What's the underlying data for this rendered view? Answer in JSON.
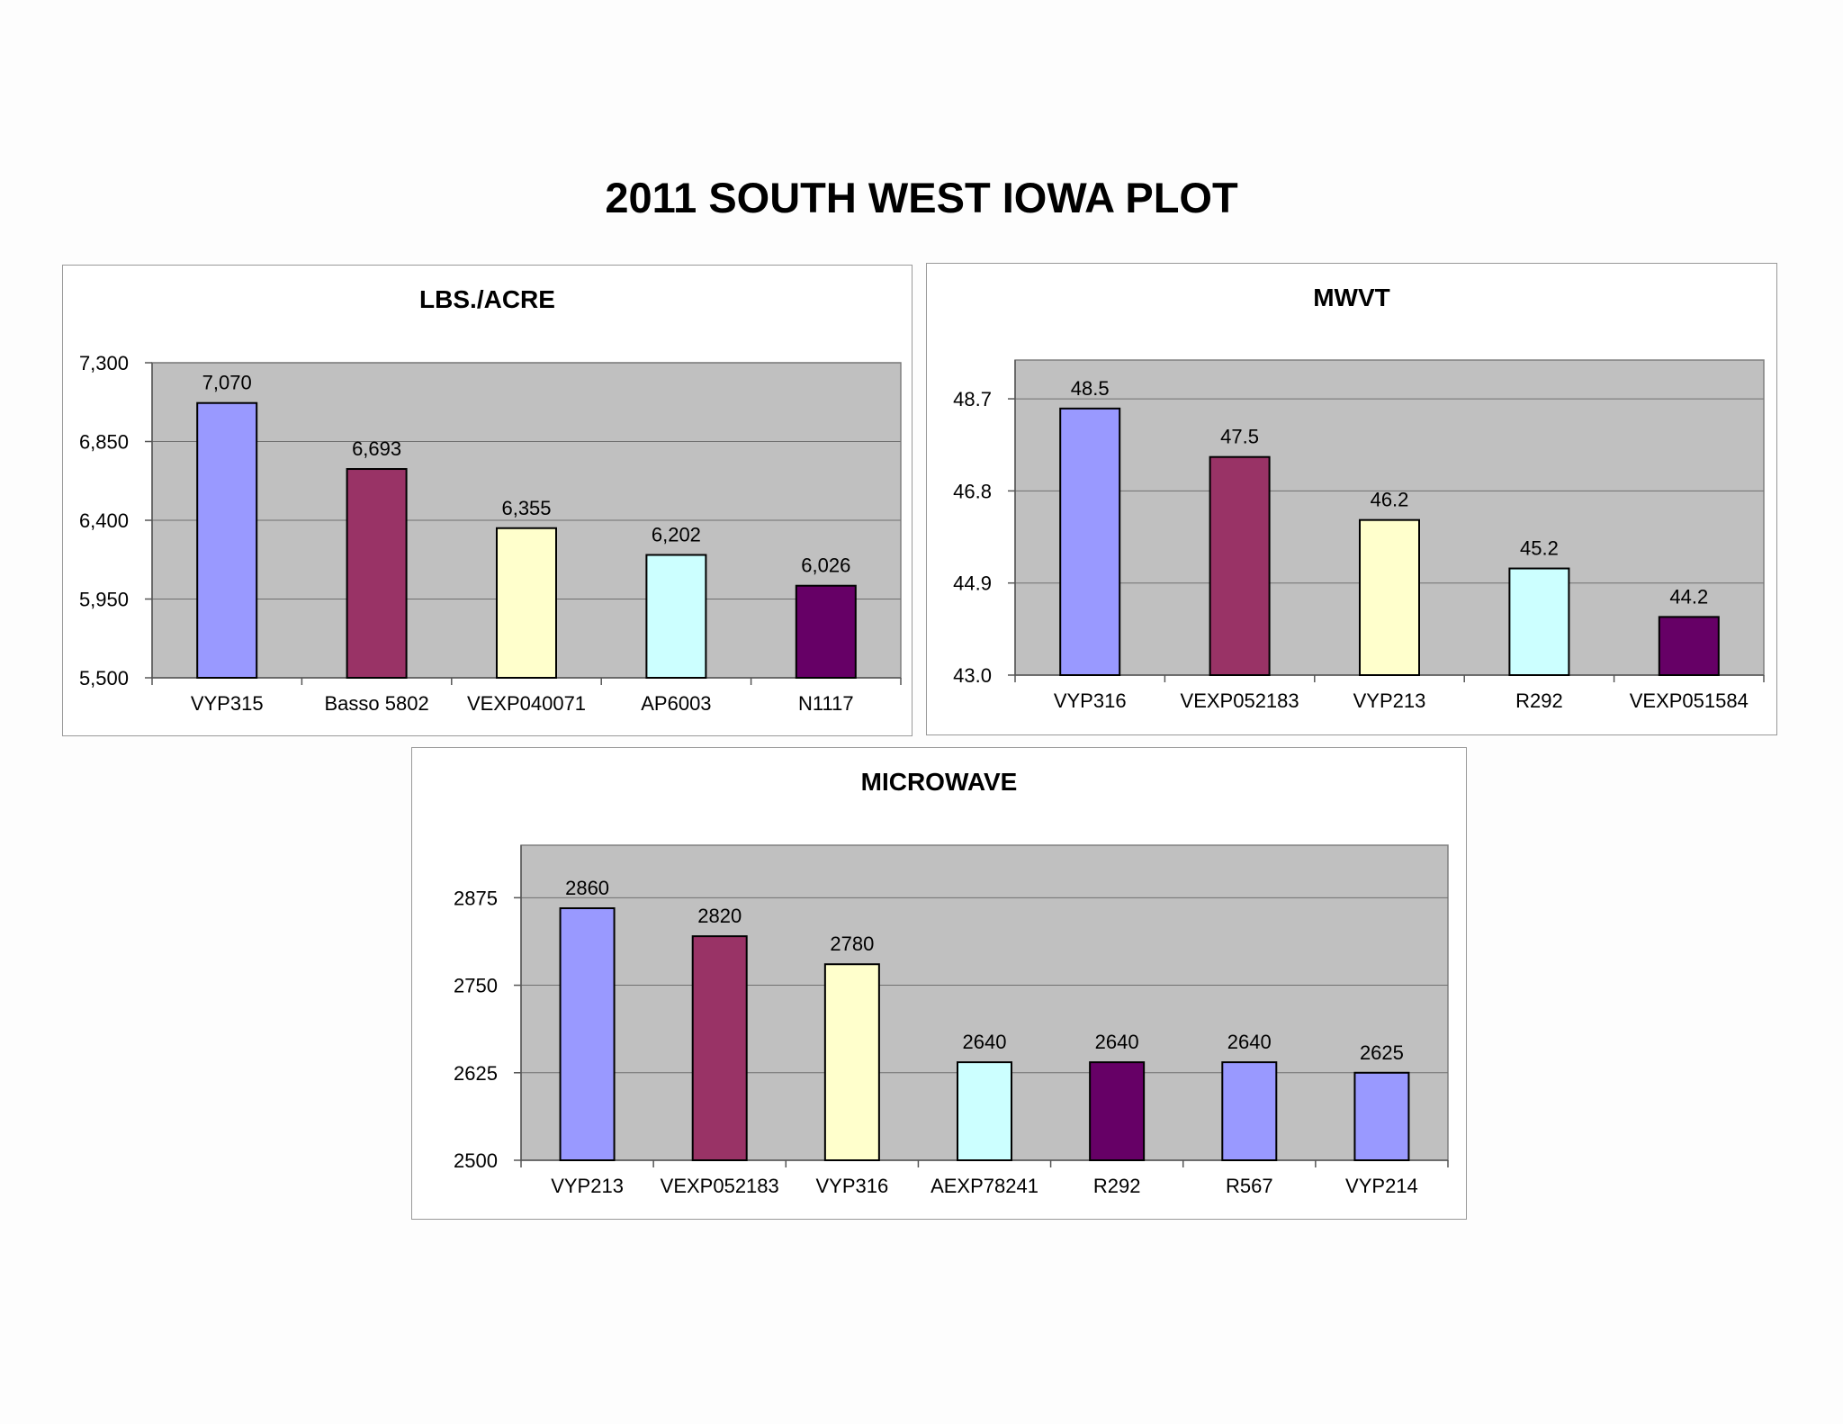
{
  "page": {
    "title": "2011 SOUTH WEST IOWA PLOT"
  },
  "chart_data": [
    {
      "id": "yield",
      "type": "bar",
      "title": "LBS./ACRE",
      "categories": [
        "VYP315",
        "Basso 5802",
        "VEXP040071",
        "AP6003",
        "N1117"
      ],
      "values": [
        7070,
        6693,
        6355,
        6202,
        6026
      ],
      "value_labels": [
        "7,070",
        "6,693",
        "6,355",
        "6,202",
        "6,026"
      ],
      "colors": [
        "#9999FF",
        "#993366",
        "#FFFFCC",
        "#CCFFFF",
        "#660066"
      ],
      "ylim": [
        5500,
        7300
      ],
      "yticks": [
        5500,
        5950,
        6400,
        6850,
        7300
      ],
      "ytick_labels": [
        "5,500",
        "5,950",
        "6,400",
        "6,850",
        "7,300"
      ],
      "grid": true,
      "plot_background": "#C0C0C0"
    },
    {
      "id": "mwvt",
      "type": "bar",
      "title": "MWVT",
      "categories": [
        "VYP316",
        "VEXP052183",
        "VYP213",
        "R292",
        "VEXP051584"
      ],
      "values": [
        48.5,
        47.5,
        46.2,
        45.2,
        44.2
      ],
      "value_labels": [
        "48.5",
        "47.5",
        "46.2",
        "45.2",
        "44.2"
      ],
      "colors": [
        "#9999FF",
        "#993366",
        "#FFFFCC",
        "#CCFFFF",
        "#660066"
      ],
      "ylim": [
        43.0,
        49.5
      ],
      "yticks": [
        43.0,
        44.9,
        46.8,
        48.7
      ],
      "ytick_labels": [
        "43.0",
        "44.9",
        "46.8",
        "48.7"
      ],
      "grid": true,
      "plot_background": "#C0C0C0"
    },
    {
      "id": "micro",
      "type": "bar",
      "title": "MICROWAVE",
      "categories": [
        "VYP213",
        "VEXP052183",
        "VYP316",
        "AEXP78241",
        "R292",
        "R567",
        "VYP214"
      ],
      "values": [
        2860,
        2820,
        2780,
        2640,
        2640,
        2640,
        2625
      ],
      "value_labels": [
        "2860",
        "2820",
        "2780",
        "2640",
        "2640",
        "2640",
        "2625"
      ],
      "colors": [
        "#9999FF",
        "#993366",
        "#FFFFCC",
        "#CCFFFF",
        "#660066",
        "#9999FF",
        "#9999FF"
      ],
      "ylim": [
        2500,
        2950
      ],
      "yticks": [
        2500,
        2625,
        2750,
        2875
      ],
      "ytick_labels": [
        "2500",
        "2625",
        "2750",
        "2875"
      ],
      "grid": true,
      "plot_background": "#C0C0C0"
    }
  ]
}
